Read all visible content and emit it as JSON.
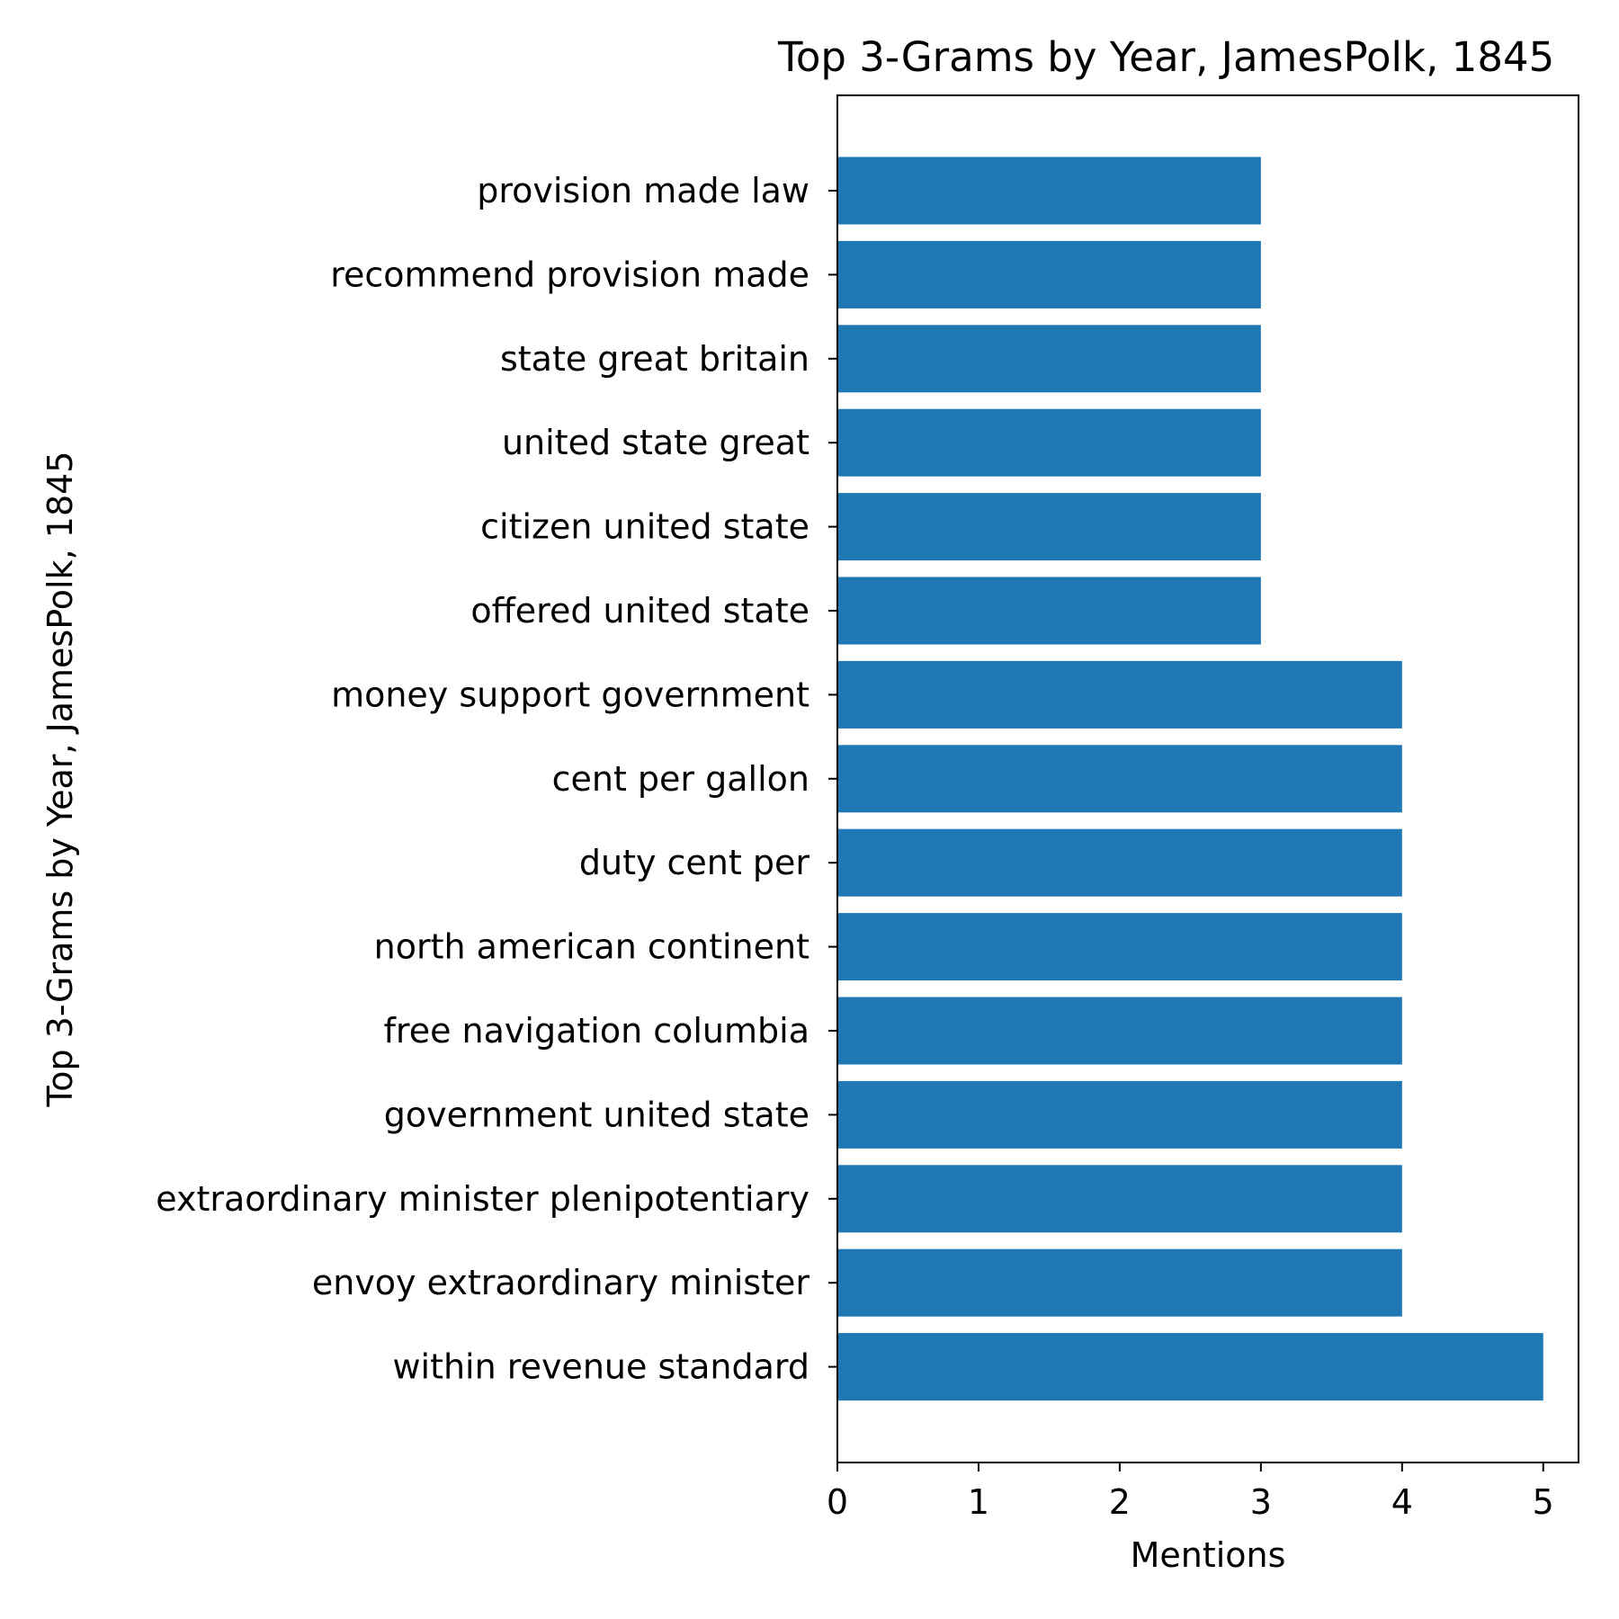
{
  "chart_data": {
    "type": "bar",
    "orientation": "horizontal",
    "title": "Top 3-Grams by Year, JamesPolk, 1845",
    "xlabel": "Mentions",
    "ylabel": "Top 3-Grams by Year, JamesPolk, 1845",
    "xlim": [
      0,
      5.25
    ],
    "xticks": [
      "0",
      "1",
      "2",
      "3",
      "4",
      "5"
    ],
    "grid": false,
    "legend": "none",
    "bar_color": "#1f77b4",
    "categories": [
      "provision made law",
      "recommend provision made",
      "state great britain",
      "united state great",
      "citizen united state",
      "offered united state",
      "money support government",
      "cent per gallon",
      "duty cent per",
      "north american continent",
      "free navigation columbia",
      "government united state",
      "extraordinary minister plenipotentiary",
      "envoy extraordinary minister",
      "within revenue standard"
    ],
    "values": [
      3,
      3,
      3,
      3,
      3,
      3,
      4,
      4,
      4,
      4,
      4,
      4,
      4,
      4,
      5
    ]
  }
}
